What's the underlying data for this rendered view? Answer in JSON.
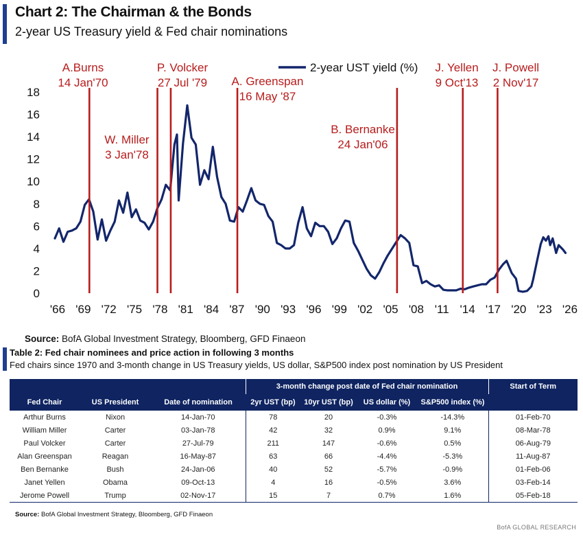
{
  "header": {
    "title": "Chart 2: The Chairman & the Bonds",
    "subtitle": "2-year US Treasury yield & Fed chair nominations"
  },
  "chart_data": {
    "type": "line",
    "title": "Chart 2: The Chairman & the Bonds",
    "subtitle": "2-year US Treasury yield & Fed chair nominations",
    "legend": "2-year UST yield (%)",
    "ylim": [
      0,
      18
    ],
    "xlim": [
      1966,
      2026
    ],
    "yticks": [
      "0",
      "2",
      "4",
      "6",
      "8",
      "10",
      "12",
      "14",
      "16",
      "18"
    ],
    "xticks": [
      "'66",
      "'69",
      "'72",
      "'75",
      "'78",
      "'81",
      "'84",
      "'87",
      "'90",
      "'93",
      "'96",
      "'99",
      "'02",
      "'05",
      "'08",
      "'11",
      "'14",
      "'17",
      "'20",
      "'23",
      "'26"
    ],
    "series": [
      {
        "name": "2-year UST yield (%)",
        "color": "#13266b",
        "points": [
          [
            1966.0,
            4.9
          ],
          [
            1966.5,
            5.8
          ],
          [
            1967.0,
            4.6
          ],
          [
            1967.5,
            5.5
          ],
          [
            1968.0,
            5.6
          ],
          [
            1968.5,
            5.8
          ],
          [
            1969.0,
            6.4
          ],
          [
            1969.5,
            7.9
          ],
          [
            1970.0,
            8.4
          ],
          [
            1970.5,
            7.3
          ],
          [
            1971.0,
            4.8
          ],
          [
            1971.5,
            6.6
          ],
          [
            1972.0,
            4.7
          ],
          [
            1972.5,
            5.6
          ],
          [
            1973.0,
            6.4
          ],
          [
            1973.5,
            8.3
          ],
          [
            1974.0,
            7.2
          ],
          [
            1974.5,
            9.0
          ],
          [
            1975.0,
            6.8
          ],
          [
            1975.5,
            7.5
          ],
          [
            1976.0,
            6.5
          ],
          [
            1976.5,
            6.3
          ],
          [
            1977.0,
            5.7
          ],
          [
            1977.5,
            6.4
          ],
          [
            1978.0,
            7.6
          ],
          [
            1978.5,
            8.4
          ],
          [
            1979.0,
            9.7
          ],
          [
            1979.5,
            9.2
          ],
          [
            1980.0,
            13.3
          ],
          [
            1980.3,
            14.2
          ],
          [
            1980.5,
            8.3
          ],
          [
            1981.0,
            13.4
          ],
          [
            1981.5,
            16.8
          ],
          [
            1982.0,
            13.9
          ],
          [
            1982.5,
            13.3
          ],
          [
            1983.0,
            9.7
          ],
          [
            1983.5,
            11.0
          ],
          [
            1984.0,
            10.2
          ],
          [
            1984.5,
            13.1
          ],
          [
            1985.0,
            10.4
          ],
          [
            1985.5,
            8.6
          ],
          [
            1986.0,
            8.0
          ],
          [
            1986.5,
            6.5
          ],
          [
            1987.0,
            6.4
          ],
          [
            1987.5,
            7.7
          ],
          [
            1988.0,
            7.3
          ],
          [
            1988.5,
            8.3
          ],
          [
            1989.0,
            9.4
          ],
          [
            1989.5,
            8.3
          ],
          [
            1990.0,
            8.0
          ],
          [
            1990.5,
            7.9
          ],
          [
            1991.0,
            6.9
          ],
          [
            1991.5,
            6.4
          ],
          [
            1992.0,
            4.5
          ],
          [
            1992.5,
            4.3
          ],
          [
            1993.0,
            4.0
          ],
          [
            1993.5,
            4.0
          ],
          [
            1994.0,
            4.3
          ],
          [
            1994.5,
            6.3
          ],
          [
            1995.0,
            7.7
          ],
          [
            1995.5,
            5.8
          ],
          [
            1996.0,
            5.1
          ],
          [
            1996.5,
            6.3
          ],
          [
            1997.0,
            6.0
          ],
          [
            1997.5,
            6.0
          ],
          [
            1998.0,
            5.5
          ],
          [
            1998.5,
            4.4
          ],
          [
            1999.0,
            4.9
          ],
          [
            1999.5,
            5.8
          ],
          [
            2000.0,
            6.5
          ],
          [
            2000.5,
            6.4
          ],
          [
            2001.0,
            4.5
          ],
          [
            2001.5,
            3.8
          ],
          [
            2002.0,
            3.0
          ],
          [
            2002.5,
            2.2
          ],
          [
            2003.0,
            1.6
          ],
          [
            2003.5,
            1.3
          ],
          [
            2004.0,
            1.9
          ],
          [
            2004.5,
            2.7
          ],
          [
            2005.0,
            3.4
          ],
          [
            2005.5,
            4.0
          ],
          [
            2006.0,
            4.6
          ],
          [
            2006.5,
            5.2
          ],
          [
            2007.0,
            4.9
          ],
          [
            2007.5,
            4.5
          ],
          [
            2008.0,
            2.5
          ],
          [
            2008.5,
            2.4
          ],
          [
            2009.0,
            0.9
          ],
          [
            2009.5,
            1.1
          ],
          [
            2010.0,
            0.8
          ],
          [
            2010.5,
            0.6
          ],
          [
            2011.0,
            0.7
          ],
          [
            2011.5,
            0.3
          ],
          [
            2012.0,
            0.25
          ],
          [
            2012.5,
            0.25
          ],
          [
            2013.0,
            0.25
          ],
          [
            2013.5,
            0.4
          ],
          [
            2014.0,
            0.35
          ],
          [
            2014.5,
            0.5
          ],
          [
            2015.0,
            0.6
          ],
          [
            2015.5,
            0.7
          ],
          [
            2016.0,
            0.8
          ],
          [
            2016.5,
            0.8
          ],
          [
            2017.0,
            1.2
          ],
          [
            2017.5,
            1.4
          ],
          [
            2018.0,
            2.1
          ],
          [
            2018.5,
            2.6
          ],
          [
            2018.9,
            2.9
          ],
          [
            2019.5,
            1.8
          ],
          [
            2020.0,
            1.3
          ],
          [
            2020.3,
            0.2
          ],
          [
            2020.8,
            0.13
          ],
          [
            2021.3,
            0.2
          ],
          [
            2021.8,
            0.6
          ],
          [
            2022.0,
            1.2
          ],
          [
            2022.5,
            3.0
          ],
          [
            2022.9,
            4.4
          ],
          [
            2023.2,
            5.0
          ],
          [
            2023.5,
            4.7
          ],
          [
            2023.8,
            5.1
          ],
          [
            2024.0,
            4.3
          ],
          [
            2024.3,
            4.9
          ],
          [
            2024.7,
            3.6
          ],
          [
            2025.0,
            4.3
          ],
          [
            2025.5,
            3.9
          ],
          [
            2025.8,
            3.6
          ]
        ]
      }
    ],
    "nominations": [
      {
        "name": "A.Burns",
        "date": "14 Jan'70",
        "x": 1970.04
      },
      {
        "name": "W. Miller",
        "date": "3 Jan'78",
        "x": 1978.01
      },
      {
        "name": "P. Volcker",
        "date": "27 Jul '79",
        "x": 1979.57
      },
      {
        "name": "A. Greenspan",
        "date": "16 May '87",
        "x": 1987.37
      },
      {
        "name": "B. Bernanke",
        "date": "24 Jan'06",
        "x": 2006.07
      },
      {
        "name": "J. Yellen",
        "date": "9 Oct'13",
        "x": 2013.77
      },
      {
        "name": "J. Powell",
        "date": "2 Nov'17",
        "x": 2017.84
      }
    ],
    "nomination_line_color": "#b71c1c"
  },
  "source": {
    "label": "Source:",
    "text": "BofA Global Investment Strategy, Bloomberg, GFD Finaeon"
  },
  "table2": {
    "title": "Table 2: Fed chair nominees and price action in following 3 months",
    "subtitle": "Fed chairs since 1970 and 3-month change in US Treasury yields, US dollar, S&P500 index post nomination by US President",
    "group_header": "3-month change post date of Fed chair nomination",
    "term_header": "Start of Term",
    "columns": [
      "Fed Chair",
      "US President",
      "Date of nomination",
      "2yr UST (bp)",
      "10yr UST (bp)",
      "US dollar (%)",
      "S&P500 index (%)"
    ],
    "rows": [
      {
        "chair": "Arthur Burns",
        "president": "Nixon",
        "date": "14-Jan-70",
        "ust2": "78",
        "ust10": "20",
        "usd": "-0.3%",
        "spx": "-14.3%",
        "term": "01-Feb-70"
      },
      {
        "chair": "William Miller",
        "president": "Carter",
        "date": "03-Jan-78",
        "ust2": "42",
        "ust10": "32",
        "usd": "0.9%",
        "spx": "9.1%",
        "term": "08-Mar-78"
      },
      {
        "chair": "Paul Volcker",
        "president": "Carter",
        "date": "27-Jul-79",
        "ust2": "211",
        "ust10": "147",
        "usd": "-0.6%",
        "spx": "0.5%",
        "term": "06-Aug-79"
      },
      {
        "chair": "Alan Greenspan",
        "president": "Reagan",
        "date": "16-May-87",
        "ust2": "63",
        "ust10": "66",
        "usd": "-4.4%",
        "spx": "-5.3%",
        "term": "11-Aug-87"
      },
      {
        "chair": "Ben Bernanke",
        "president": "Bush",
        "date": "24-Jan-06",
        "ust2": "40",
        "ust10": "52",
        "usd": "-5.7%",
        "spx": "-0.9%",
        "term": "01-Feb-06"
      },
      {
        "chair": "Janet Yellen",
        "president": "Obama",
        "date": "09-Oct-13",
        "ust2": "4",
        "ust10": "16",
        "usd": "-0.5%",
        "spx": "3.6%",
        "term": "03-Feb-14"
      },
      {
        "chair": "Jerome Powell",
        "president": "Trump",
        "date": "02-Nov-17",
        "ust2": "15",
        "ust10": "7",
        "usd": "0.7%",
        "spx": "1.6%",
        "term": "05-Feb-18"
      }
    ],
    "source_label": "Source:",
    "source_text": "BofA Global Investment Strategy, Bloomberg, GFD Finaeon",
    "negative_color": "#c0141a",
    "header_color": "#0f2461"
  },
  "footer": {
    "brand": "BofA GLOBAL RESEARCH"
  }
}
